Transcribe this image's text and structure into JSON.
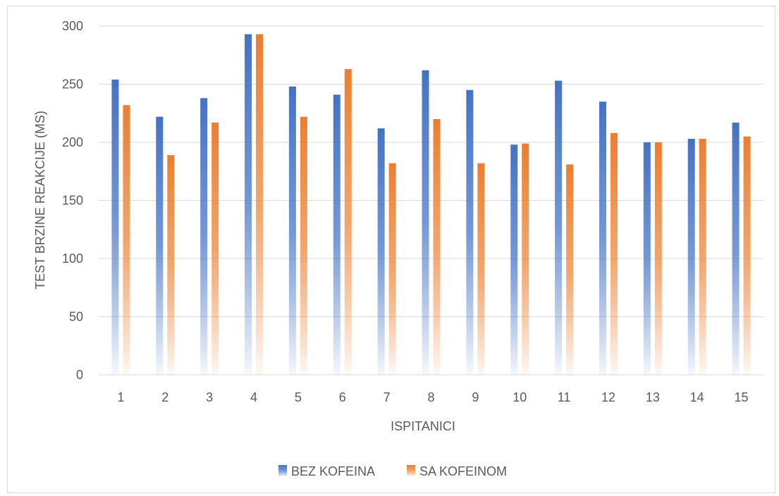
{
  "chart_data": {
    "type": "bar",
    "categories": [
      "1",
      "2",
      "3",
      "4",
      "5",
      "6",
      "7",
      "8",
      "9",
      "10",
      "11",
      "12",
      "13",
      "14",
      "15"
    ],
    "series": [
      {
        "name": "BEZ KOFEINA",
        "values": [
          254,
          222,
          238,
          293,
          248,
          241,
          212,
          262,
          245,
          198,
          253,
          235,
          200,
          203,
          217
        ],
        "color": "#4472c4"
      },
      {
        "name": "SA KOFEINOM",
        "values": [
          232,
          189,
          217,
          293,
          222,
          263,
          182,
          220,
          182,
          199,
          181,
          208,
          200,
          203,
          205
        ],
        "color": "#ed7d31"
      }
    ],
    "xlabel": "ISPITANICI",
    "ylabel": "TEST BRZINE REAKCIJE (MS)",
    "ylim": [
      0,
      300
    ],
    "yticks": [
      0,
      50,
      100,
      150,
      200,
      250,
      300
    ],
    "grid": true,
    "legend": "bottom"
  }
}
